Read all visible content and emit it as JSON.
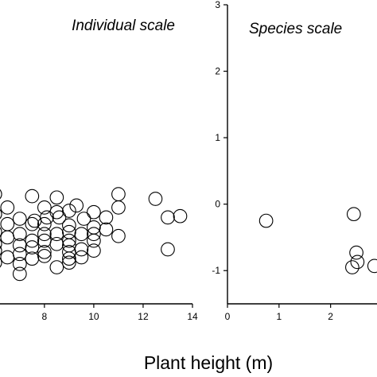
{
  "chart_data": [
    {
      "type": "scatter",
      "title": "Individual scale",
      "xlabel": "",
      "ylabel": "",
      "xlim": [
        6.2,
        14
      ],
      "ylim": [
        -1.5,
        3
      ],
      "xticks": [
        8,
        10,
        12,
        14
      ],
      "yticks": [],
      "grid": false,
      "x": [
        6,
        7.5,
        8.5,
        9.3,
        11,
        12.5,
        6.5,
        8,
        8.5,
        9,
        10,
        11,
        6,
        7,
        7.6,
        8.1,
        8.6,
        9.6,
        10.5,
        13,
        13.5,
        6.5,
        7.5,
        8,
        9,
        10,
        10.5,
        6,
        7,
        8,
        8.5,
        9,
        9.5,
        10,
        11,
        6.5,
        7.5,
        8,
        9,
        10,
        6,
        7,
        7.5,
        8.5,
        9,
        9.5,
        6,
        7,
        8,
        9,
        10,
        13,
        6.5,
        7.5,
        8,
        9,
        9.5,
        6,
        7,
        8.5,
        9,
        7
      ],
      "y": [
        0.15,
        0.12,
        0.1,
        -0.02,
        0.15,
        0.08,
        -0.05,
        -0.05,
        -0.12,
        -0.1,
        -0.12,
        -0.05,
        -0.15,
        -0.22,
        -0.25,
        -0.2,
        -0.2,
        -0.22,
        -0.2,
        -0.2,
        -0.18,
        -0.3,
        -0.3,
        -0.3,
        -0.32,
        -0.35,
        -0.38,
        -0.42,
        -0.45,
        -0.45,
        -0.45,
        -0.42,
        -0.45,
        -0.45,
        -0.48,
        -0.5,
        -0.55,
        -0.55,
        -0.55,
        -0.55,
        -0.6,
        -0.62,
        -0.65,
        -0.6,
        -0.62,
        -0.68,
        -0.7,
        -0.75,
        -0.72,
        -0.72,
        -0.7,
        -0.68,
        -0.8,
        -0.82,
        -0.78,
        -0.82,
        -0.8,
        -0.88,
        -0.9,
        -0.95,
        -0.88,
        -1.05
      ]
    },
    {
      "type": "scatter",
      "title": "Species scale",
      "xlabel": "",
      "ylabel": "",
      "xlim": [
        0,
        2.9
      ],
      "ylim": [
        -1.5,
        3
      ],
      "xticks": [
        0,
        1,
        2
      ],
      "yticks": [
        -1,
        0,
        1,
        2,
        3
      ],
      "grid": false,
      "x": [
        0.75,
        2.45,
        2.5,
        2.42,
        2.52,
        2.85
      ],
      "y": [
        -0.25,
        -0.15,
        -0.73,
        -0.95,
        -0.87,
        -0.93
      ]
    }
  ],
  "shared_xlabel": "Plant height (m)"
}
